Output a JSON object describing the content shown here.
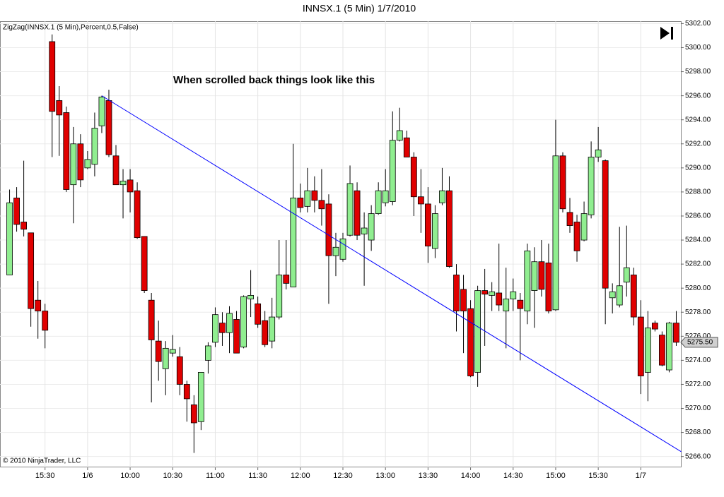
{
  "chart_data": {
    "type": "candlestick",
    "title": "INNSX.1 (5 Min)  1/7/2010",
    "indicator_label": "ZigZag(INNSX.1 (5 Min),Percent,0.5,False)",
    "annotation": "When scrolled back things look like this",
    "copyright": "© 2010 NinjaTrader, LLC",
    "categories": [
      null,
      null,
      null,
      null,
      null,
      "15:30",
      null,
      null,
      null,
      null,
      null,
      "1/6",
      null,
      null,
      null,
      null,
      null,
      "10:00",
      null,
      null,
      null,
      null,
      null,
      "10:30",
      null,
      null,
      null,
      null,
      null,
      "11:00",
      null,
      null,
      null,
      null,
      null,
      "11:30",
      null,
      null,
      null,
      null,
      null,
      "12:00",
      null,
      null,
      null,
      null,
      null,
      "12:30",
      null,
      null,
      null,
      null,
      null,
      "13:00",
      null,
      null,
      null,
      null,
      null,
      "13:30",
      null,
      null,
      null,
      null,
      null,
      "14:00",
      null,
      null,
      null,
      null,
      null,
      "14:30",
      null,
      null,
      null,
      null,
      null,
      "15:00",
      null,
      null,
      null,
      null,
      null,
      "15:30",
      null,
      null,
      null,
      null,
      null,
      "1/7",
      null,
      null,
      null,
      null,
      null
    ],
    "open": [
      5281.1,
      5287.5,
      5285.5,
      5284.6,
      5279,
      5278.1,
      5300.5,
      5295.6,
      5294.6,
      5288.6,
      5292,
      5290,
      5290.3,
      5293.5,
      5295.6,
      5291,
      5288.6,
      5289,
      5288.1,
      5284.3,
      5279,
      5275.6,
      5273.3,
      5274.6,
      5274.3,
      5272,
      5270.3,
      5268.9,
      5274,
      5275.5,
      5277.1,
      5276.3,
      5277.4,
      5275.1,
      5279.1,
      5278.7,
      5277.3,
      5275.6,
      5277.6,
      5281.1,
      5280.1,
      5287.5,
      5286.8,
      5288.1,
      5287.3,
      5287,
      5282.7,
      5282.4,
      5284.4,
      5288.1,
      5284.5,
      5284,
      5286.2,
      5287.1,
      5287.2,
      5292.3,
      5292.5,
      5290.9,
      5287.6,
      5287,
      5283.3,
      5287.1,
      5288.1,
      5281.1,
      5279.9,
      5278.3,
      5273,
      5279.8,
      5279.4,
      5279.6,
      5278.1,
      5279.1,
      5279,
      5278.1,
      5279.8,
      5282.2,
      5282.1,
      5278.2,
      5291,
      5286.3,
      5285.5,
      5284,
      5286.1,
      5290.9,
      5290.6,
      5279.2,
      5278.6,
      5280.5,
      5281.1,
      5277.6,
      5273,
      5277.1,
      5276.1,
      5273.2,
      5277.1
    ],
    "high": [
      5288.2,
      5288.4,
      5290.6,
      5284.6,
      5280.6,
      5278.7,
      5301.1,
      5296.8,
      5295.1,
      5293.4,
      5292.8,
      5291.4,
      5294.6,
      5296,
      5296.5,
      5291.9,
      5289.9,
      5289.9,
      5288.8,
      5284.3,
      5279.6,
      5277.3,
      5275.6,
      5276.1,
      5275.1,
      5272.3,
      5271.1,
      5273,
      5275.5,
      5278.4,
      5278,
      5278.5,
      5278.1,
      5279.4,
      5281.5,
      5279.3,
      5278.1,
      5279.2,
      5284,
      5284,
      5292,
      5288.7,
      5290,
      5289.3,
      5289.9,
      5287.8,
      5284.6,
      5284.6,
      5290.2,
      5288.8,
      5286.3,
      5286.9,
      5288.8,
      5289.9,
      5294.7,
      5295,
      5293.1,
      5291.3,
      5289.9,
      5288.4,
      5286.9,
      5290,
      5289.3,
      5282,
      5281.1,
      5279,
      5280.2,
      5281.6,
      5280.5,
      5283.7,
      5281.7,
      5280.8,
      5279.6,
      5283.7,
      5283.4,
      5284,
      5283.7,
      5294,
      5291.3,
      5287.5,
      5286.1,
      5287.2,
      5292.2,
      5293.4,
      5290.7,
      5280.4,
      5285.1,
      5285.2,
      5281.7,
      5279,
      5278.1,
      5277.3,
      5276.4,
      5277.2,
      5278.1
    ],
    "low": [
      5281.1,
      5284.7,
      5284.3,
      5276.8,
      5275.8,
      5275,
      5290.9,
      5291,
      5288,
      5285.4,
      5288.4,
      5289.9,
      5289.3,
      5292.9,
      5290.9,
      5288.6,
      5285.8,
      5286.3,
      5284.1,
      5279.6,
      5270.5,
      5272.3,
      5271.1,
      5274.3,
      5271.1,
      5268.9,
      5266.3,
      5268.2,
      5272.9,
      5275.1,
      5275.2,
      5274.6,
      5274.6,
      5275,
      5277.6,
      5276.7,
      5275.1,
      5275,
      5277.4,
      5279.9,
      5280.1,
      5286.3,
      5286.3,
      5286.3,
      5285.2,
      5278.7,
      5281,
      5282.2,
      5284.3,
      5284,
      5280.2,
      5283.1,
      5286.1,
      5286.8,
      5286.9,
      5292.2,
      5290.9,
      5286,
      5284.6,
      5282.1,
      5282.5,
      5286.9,
      5281.7,
      5276.4,
      5274.6,
      5272.6,
      5271.8,
      5275.2,
      5278.1,
      5278.1,
      5275,
      5278.1,
      5274,
      5277,
      5276.7,
      5279.3,
      5277.9,
      5278.1,
      5286.3,
      5284.6,
      5282.2,
      5283.9,
      5285.8,
      5290.5,
      5277,
      5277.9,
      5278.4,
      5279.3,
      5276.9,
      5271.2,
      5270.6,
      5276.4,
      5273.5,
      5273,
      5275.2
    ],
    "close": [
      5287.1,
      5285.3,
      5284.9,
      5278.3,
      5278.1,
      5276.5,
      5294.7,
      5294.4,
      5288.2,
      5292,
      5289,
      5290.7,
      5293.3,
      5295.9,
      5291.1,
      5288.6,
      5288.9,
      5288,
      5284.2,
      5279.8,
      5275.7,
      5273.9,
      5275,
      5274.9,
      5272,
      5270.8,
      5268.8,
      5273,
      5275.2,
      5277.8,
      5276.3,
      5277.9,
      5274.6,
      5279.3,
      5279.4,
      5277,
      5275.3,
      5277.6,
      5281.1,
      5280.4,
      5287.5,
      5286.7,
      5288.1,
      5287.3,
      5286.6,
      5282.7,
      5283.4,
      5284.1,
      5288.7,
      5284.4,
      5285,
      5286.2,
      5288.1,
      5288.1,
      5292.3,
      5293.1,
      5290.9,
      5287.6,
      5287,
      5283.5,
      5286.2,
      5288.1,
      5281.8,
      5278.1,
      5278.1,
      5272.7,
      5279.8,
      5279.5,
      5279.7,
      5278.6,
      5279.1,
      5279.7,
      5278.3,
      5283.1,
      5282.2,
      5279.9,
      5278.1,
      5291,
      5286.6,
      5285.2,
      5283.1,
      5286.2,
      5290.9,
      5291.5,
      5280,
      5279.7,
      5280.2,
      5281.7,
      5277.6,
      5272.7,
      5276.7,
      5276.6,
      5273.6,
      5277.1,
      5275.5
    ],
    "up_color": "#90ee90",
    "down_color": "#e00000",
    "zigzag": {
      "x": [
        13,
        94.7
      ],
      "values": [
        5296.0,
        5266.4
      ],
      "color": "#0000ff"
    },
    "last_price": {
      "value": 5275.5,
      "label": "5275.50"
    },
    "xlim": [
      -1.35,
      94.65
    ],
    "ylim": [
      5265.1,
      5302.2
    ],
    "yticks": [
      {
        "value": 5266,
        "label": "5266.00"
      },
      {
        "value": 5268,
        "label": "5268.00"
      },
      {
        "value": 5270,
        "label": "5270.00"
      },
      {
        "value": 5272,
        "label": "5272.00"
      },
      {
        "value": 5274,
        "label": "5274.00"
      },
      {
        "value": 5276,
        "label": "5276.00"
      },
      {
        "value": 5278,
        "label": "5278.00"
      },
      {
        "value": 5280,
        "label": "5280.00"
      },
      {
        "value": 5282,
        "label": "5282.00"
      },
      {
        "value": 5284,
        "label": "5284.00"
      },
      {
        "value": 5286,
        "label": "5286.00"
      },
      {
        "value": 5288,
        "label": "5288.00"
      },
      {
        "value": 5290,
        "label": "5290.00"
      },
      {
        "value": 5292,
        "label": "5292.00"
      },
      {
        "value": 5294,
        "label": "5294.00"
      },
      {
        "value": 5296,
        "label": "5296.00"
      },
      {
        "value": 5298,
        "label": "5298.00"
      },
      {
        "value": 5300,
        "label": "5300.00"
      },
      {
        "value": 5302,
        "label": "5302.00"
      }
    ],
    "grid": true
  }
}
